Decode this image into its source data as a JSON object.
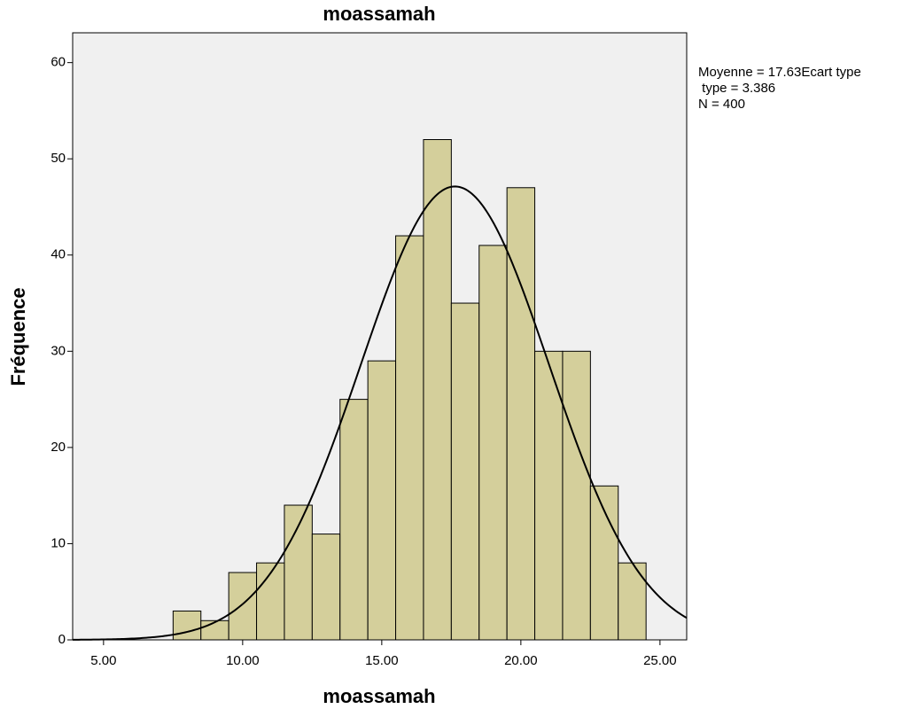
{
  "chart_data": {
    "type": "histogram",
    "title": "moassamah",
    "x_label": "moassamah",
    "y_label": "Fréquence",
    "bins": [
      7.5,
      8.5,
      9.5,
      10.5,
      11.5,
      12.5,
      13.5,
      14.5,
      15.5,
      16.5,
      17.5,
      18.5,
      19.5,
      20.5,
      21.5,
      22.5,
      23.5,
      24.5
    ],
    "values": [
      3,
      2,
      7,
      8,
      14,
      11,
      25,
      29,
      42,
      52,
      35,
      41,
      47,
      30,
      30,
      16,
      8
    ],
    "color": "#d4cf9b",
    "xlim": [
      3.89,
      25.96
    ],
    "xticks": [
      {
        "value": 5,
        "label": "5.00"
      },
      {
        "value": 10,
        "label": "10.00"
      },
      {
        "value": 15,
        "label": "15.00"
      },
      {
        "value": 20,
        "label": "20.00"
      },
      {
        "value": 25,
        "label": "25.00"
      }
    ],
    "ylim": [
      0,
      63.1
    ],
    "yticks": [
      0,
      10,
      20,
      30,
      40,
      50,
      60
    ],
    "curve": {
      "mean": 17.63,
      "sd": 3.386,
      "n": 400
    },
    "annotation": [
      "Moyenne = 17.63Ecart type",
      " type = 3.386",
      "N = 400"
    ]
  }
}
